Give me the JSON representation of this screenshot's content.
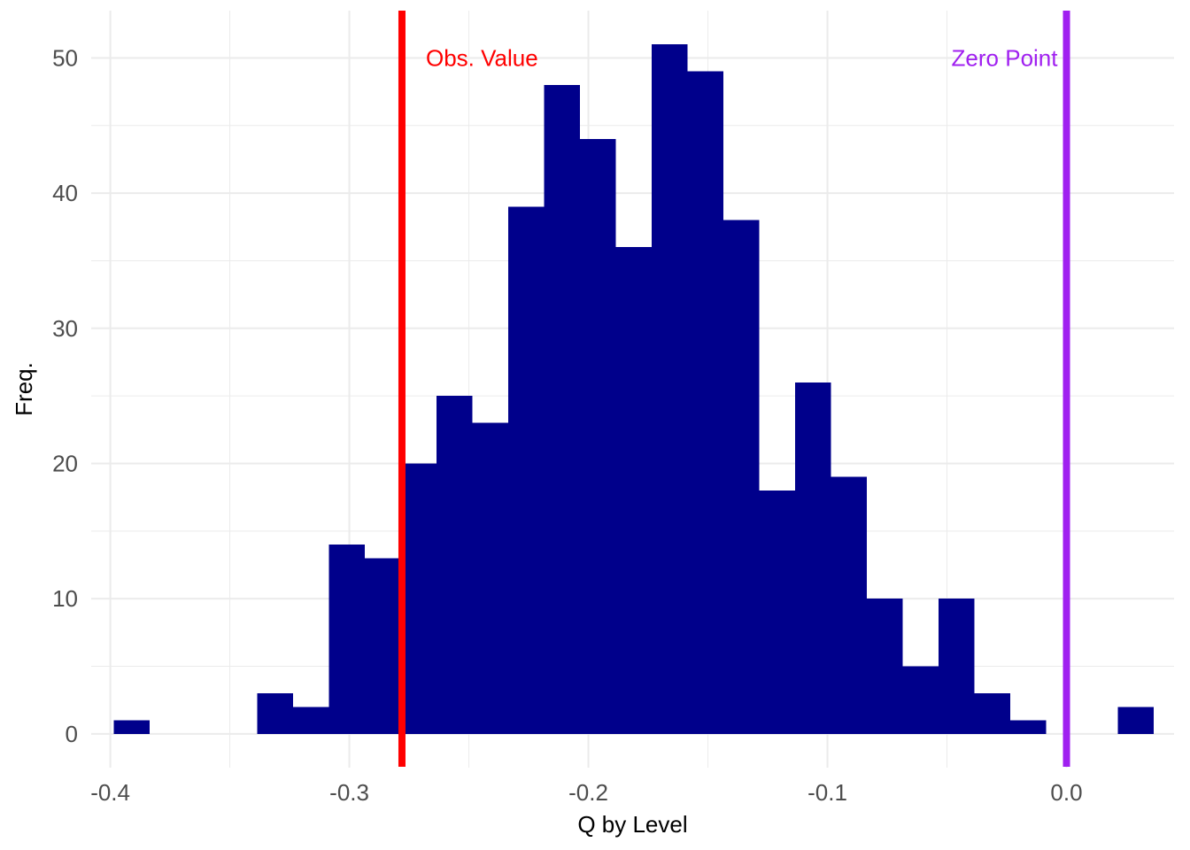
{
  "chart_data": {
    "type": "bar",
    "subtype": "histogram",
    "xlabel": "Q by Level",
    "ylabel": "Freq.",
    "xlim": [
      -0.408,
      0.045
    ],
    "ylim": [
      -2.5,
      53.5
    ],
    "x_ticks": [
      -0.4,
      -0.3,
      -0.2,
      -0.1,
      0.0
    ],
    "x_tick_labels": [
      "-0.4",
      "-0.3",
      "-0.2",
      "-0.1",
      "0.0"
    ],
    "y_ticks": [
      0,
      10,
      20,
      30,
      40,
      50
    ],
    "y_tick_labels": [
      "0",
      "10",
      "20",
      "30",
      "40",
      "50"
    ],
    "bin_width": 0.015,
    "bins": [
      {
        "x0": -0.3985,
        "x1": -0.3835,
        "count": 1
      },
      {
        "x0": -0.3835,
        "x1": -0.3685,
        "count": 0
      },
      {
        "x0": -0.3685,
        "x1": -0.3535,
        "count": 0
      },
      {
        "x0": -0.3535,
        "x1": -0.3385,
        "count": 0
      },
      {
        "x0": -0.3385,
        "x1": -0.3235,
        "count": 3
      },
      {
        "x0": -0.3235,
        "x1": -0.3085,
        "count": 2
      },
      {
        "x0": -0.3085,
        "x1": -0.2935,
        "count": 14
      },
      {
        "x0": -0.2935,
        "x1": -0.2785,
        "count": 13
      },
      {
        "x0": -0.2785,
        "x1": -0.2635,
        "count": 20
      },
      {
        "x0": -0.2635,
        "x1": -0.2485,
        "count": 25
      },
      {
        "x0": -0.2485,
        "x1": -0.2335,
        "count": 23
      },
      {
        "x0": -0.2335,
        "x1": -0.2185,
        "count": 39
      },
      {
        "x0": -0.2185,
        "x1": -0.2035,
        "count": 48
      },
      {
        "x0": -0.2035,
        "x1": -0.1885,
        "count": 44
      },
      {
        "x0": -0.1885,
        "x1": -0.1735,
        "count": 36
      },
      {
        "x0": -0.1735,
        "x1": -0.1585,
        "count": 51
      },
      {
        "x0": -0.1585,
        "x1": -0.1435,
        "count": 49
      },
      {
        "x0": -0.1435,
        "x1": -0.1285,
        "count": 38
      },
      {
        "x0": -0.1285,
        "x1": -0.1135,
        "count": 18
      },
      {
        "x0": -0.1135,
        "x1": -0.0985,
        "count": 26
      },
      {
        "x0": -0.0985,
        "x1": -0.0835,
        "count": 19
      },
      {
        "x0": -0.0835,
        "x1": -0.0685,
        "count": 10
      },
      {
        "x0": -0.0685,
        "x1": -0.0535,
        "count": 5
      },
      {
        "x0": -0.0535,
        "x1": -0.0385,
        "count": 10
      },
      {
        "x0": -0.0385,
        "x1": -0.0235,
        "count": 3
      },
      {
        "x0": -0.0235,
        "x1": -0.0085,
        "count": 1
      },
      {
        "x0": -0.0085,
        "x1": 0.0065,
        "count": 0
      },
      {
        "x0": 0.0065,
        "x1": 0.0215,
        "count": 0
      },
      {
        "x0": 0.0215,
        "x1": 0.0365,
        "count": 2
      }
    ],
    "bar_color": "#00008b",
    "reference_lines": [
      {
        "label": "Obs. Value",
        "x": -0.278,
        "color": "#ff0000",
        "label_side": "right"
      },
      {
        "label": "Zero Point",
        "x": 0.0,
        "color": "#a020f0",
        "label_side": "left"
      }
    ],
    "annotation_y": 50,
    "grid": true,
    "grid_color": "#ebebeb",
    "legend": "none"
  }
}
